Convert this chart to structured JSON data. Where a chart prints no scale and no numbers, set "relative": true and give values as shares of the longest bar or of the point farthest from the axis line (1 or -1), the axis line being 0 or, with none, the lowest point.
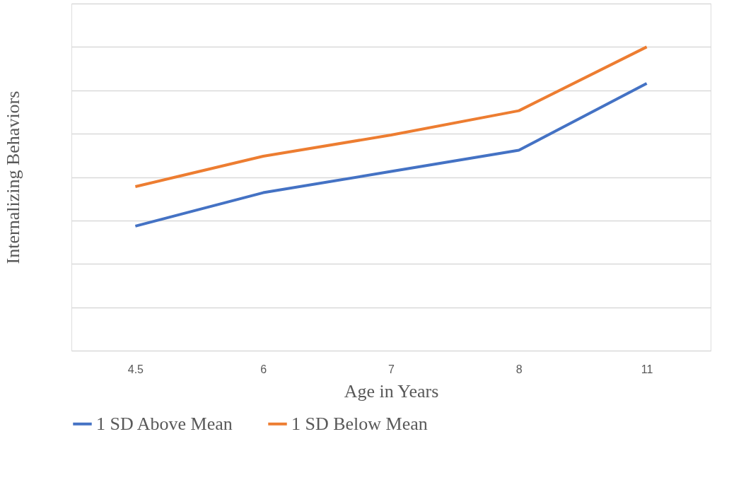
{
  "chart_data": {
    "type": "line",
    "xlabel": "Age in Years",
    "ylabel": "Internalizing Behaviors",
    "categories": [
      "4.5",
      "6",
      "7",
      "8",
      "11"
    ],
    "relative": true,
    "series": [
      {
        "name": "1 SD Above Mean",
        "color": "#4472c4",
        "values": [
          0.41,
          0.52,
          0.59,
          0.66,
          0.88
        ]
      },
      {
        "name": "1 SD Below Mean",
        "color": "#ed7d31",
        "values": [
          0.54,
          0.64,
          0.71,
          0.79,
          1.0
        ]
      }
    ],
    "grid": "y",
    "legend": "bottom",
    "marker": "none",
    "line_style": "solid"
  }
}
